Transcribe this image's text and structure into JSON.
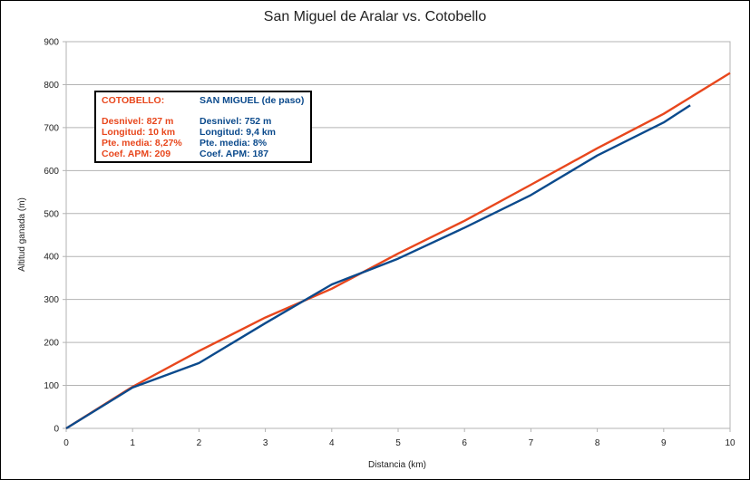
{
  "chart_data": {
    "type": "line",
    "title": "San Miguel de Aralar vs. Cotobello",
    "xlabel": "Distancia (km)",
    "ylabel": "Altitud ganada (m)",
    "xlim": [
      0,
      10
    ],
    "ylim": [
      0,
      900
    ],
    "x_ticks": [
      "0",
      "1",
      "2",
      "3",
      "4",
      "5",
      "6",
      "7",
      "8",
      "9",
      "10"
    ],
    "y_ticks": [
      "0",
      "100",
      "200",
      "300",
      "400",
      "500",
      "600",
      "700",
      "800",
      "900"
    ],
    "grid": true,
    "series": [
      {
        "name": "COTOBELLO",
        "color": "#e8471d",
        "x": [
          0,
          1,
          2,
          3,
          4,
          5,
          6,
          7,
          8,
          9,
          10
        ],
        "y": [
          0,
          97,
          180,
          258,
          325,
          407,
          483,
          567,
          652,
          732,
          827
        ]
      },
      {
        "name": "SAN MIGUEL",
        "color": "#0b4a8c",
        "x": [
          0,
          1,
          2,
          3,
          4,
          5,
          6,
          7,
          8,
          9,
          9.4
        ],
        "y": [
          0,
          95,
          152,
          245,
          335,
          395,
          467,
          543,
          635,
          712,
          752
        ]
      }
    ]
  },
  "legend": {
    "cotobello": {
      "title": "COTOBELLO:",
      "desnivel": "Desnivel: 827 m",
      "longitud": "Longitud: 10 km",
      "pendiente": "Pte. media: 8,27%",
      "coef": "Coef. APM: 209"
    },
    "san_miguel": {
      "title": "SAN MIGUEL  (de paso)",
      "desnivel": "Desnivel: 752 m",
      "longitud": "Longitud: 9,4 km",
      "pendiente": "Pte. media: 8%",
      "coef": "Coef. APM: 187"
    }
  }
}
